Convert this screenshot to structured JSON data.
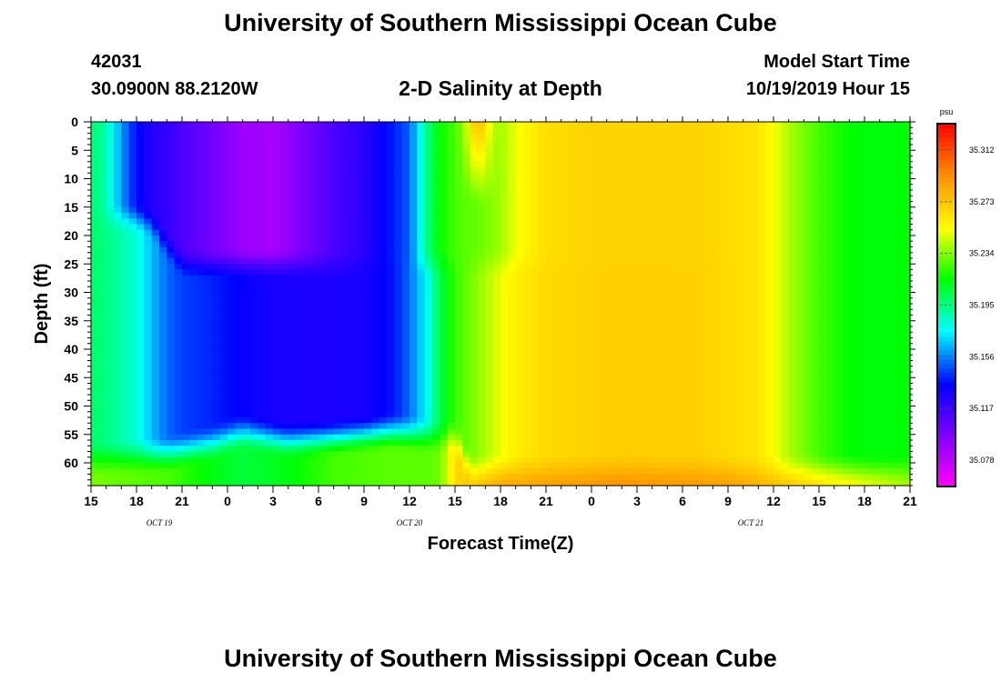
{
  "header": {
    "title_top": "University of Southern Mississippi Ocean Cube",
    "station_id": "42031",
    "location": "30.0900N 88.2120W",
    "subtitle": "2-D Salinity at Depth",
    "model_label": "Model Start Time",
    "model_time": "10/19/2019 Hour 15",
    "title_bottom": "University of Southern Mississippi Ocean Cube"
  },
  "chart_data": {
    "type": "heatmap",
    "title": "2-D Salinity at Depth",
    "xlabel": "Forecast Time(Z)",
    "ylabel": "Depth (ft)",
    "x_range_hours": [
      0,
      54
    ],
    "x_tick_labels": [
      "15",
      "18",
      "21",
      "0",
      "3",
      "6",
      "9",
      "12",
      "15",
      "18",
      "21",
      "0",
      "3",
      "6",
      "9",
      "12",
      "15",
      "18",
      "21"
    ],
    "date_labels": [
      {
        "label": "OCT 19",
        "hour_offset": 4.5
      },
      {
        "label": "OCT 20",
        "hour_offset": 21
      },
      {
        "label": "OCT 21",
        "hour_offset": 43.5
      }
    ],
    "y_ticks": [
      0,
      5,
      10,
      15,
      20,
      25,
      30,
      35,
      40,
      45,
      50,
      55,
      60
    ],
    "ylim": [
      0,
      64
    ],
    "y_inverted": true,
    "colorbar": {
      "unit": "psu",
      "min": 35.058,
      "max": 35.332,
      "tick_values": [
        35.312,
        35.273,
        35.234,
        35.195,
        35.156,
        35.117,
        35.078
      ]
    },
    "field_description_values": [
      {
        "hour": 0,
        "depth_0_45": 35.195,
        "depth_60": 35.234
      },
      {
        "hour": 6,
        "depth_0_15": 35.117,
        "depth_25_50": 35.156
      },
      {
        "hour": 12,
        "depth_0_15": 35.078,
        "depth_25_50": 35.117
      },
      {
        "hour": 21,
        "depth_0_50": 35.156,
        "depth_58": 35.195
      },
      {
        "hour": 27,
        "depth_0_50": 35.234
      },
      {
        "hour": 36,
        "depth_0_60": 35.273,
        "depth_64": 35.312
      },
      {
        "hour": 54,
        "depth_0_45": 35.215,
        "depth_55": 35.234
      }
    ]
  }
}
